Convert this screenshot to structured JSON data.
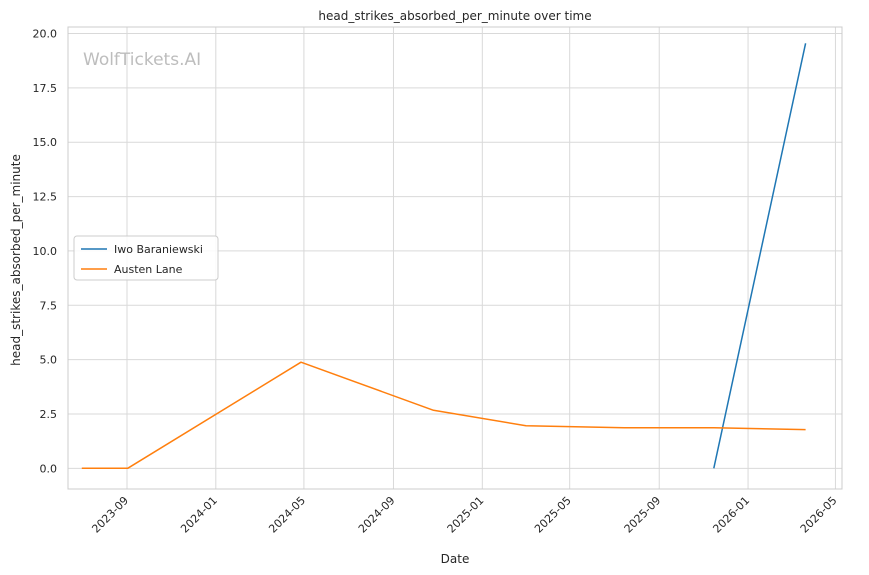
{
  "chart_data": {
    "type": "line",
    "title": "head_strikes_absorbed_per_minute over time",
    "xlabel": "Date",
    "ylabel": "head_strikes_absorbed_per_minute",
    "watermark": "WolfTickets.AI",
    "xlim": [
      "2023-06-12",
      "2026-05-10"
    ],
    "ylim": [
      -0.95,
      20.3
    ],
    "x_ticks": [
      "2023-09",
      "2024-01",
      "2024-05",
      "2024-09",
      "2025-01",
      "2025-05",
      "2025-09",
      "2026-01",
      "2026-05"
    ],
    "y_ticks": [
      "0.0",
      "2.5",
      "5.0",
      "7.5",
      "10.0",
      "12.5",
      "15.0",
      "17.5",
      "20.0"
    ],
    "grid": true,
    "legend_position": "center-left",
    "series": [
      {
        "name": "Iwo Baraniewski",
        "color": "#1f77b4",
        "x": [
          "2025-11-15",
          "2026-03-21"
        ],
        "y": [
          0.0,
          19.55
        ]
      },
      {
        "name": "Austen Lane",
        "color": "#ff7f0e",
        "x": [
          "2023-07-01",
          "2023-09-02",
          "2024-04-27",
          "2024-10-26",
          "2025-03-02",
          "2025-07-15",
          "2025-11-15",
          "2026-03-21"
        ],
        "y": [
          0.0,
          0.0,
          4.88,
          2.67,
          1.96,
          1.87,
          1.87,
          1.78
        ]
      }
    ]
  }
}
